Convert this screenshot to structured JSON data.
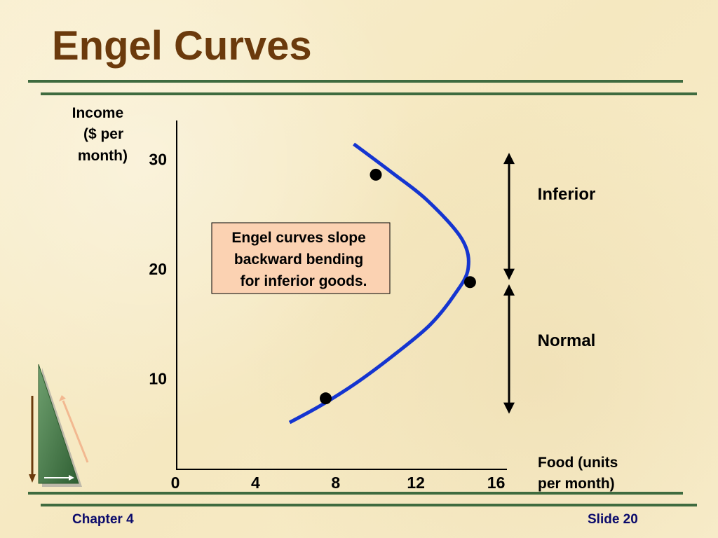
{
  "slide": {
    "title": "Engel Curves",
    "footer_left": "Chapter 4",
    "footer_right": "Slide 20",
    "colors": {
      "title": "#6b3a0c",
      "rule": "#3f6b3f",
      "curve": "#1535d0",
      "callout_fill": "#fbd2b2",
      "footer_text": "#0a0a6b"
    },
    "logo_icon": "green-triangle-logo-icon"
  },
  "chart_data": {
    "type": "line",
    "xlabel_lines": [
      "Food (units",
      "per month)"
    ],
    "ylabel_lines": [
      "Income",
      "($ per",
      "month)"
    ],
    "xlim": [
      0,
      16
    ],
    "ylim": [
      0,
      34
    ],
    "x_ticks": [
      {
        "value": 0,
        "label": "0"
      },
      {
        "value": 4,
        "label": "4"
      },
      {
        "value": 8,
        "label": "8"
      },
      {
        "value": 12,
        "label": "12"
      },
      {
        "value": 16,
        "label": "16"
      }
    ],
    "y_ticks": [
      {
        "value": 10,
        "label": "10"
      },
      {
        "value": 20,
        "label": "20"
      },
      {
        "value": 30,
        "label": "30"
      }
    ],
    "series": [
      {
        "curve": [
          {
            "x": 5.7,
            "y": 6.0
          },
          {
            "x": 7.3,
            "y": 7.6
          },
          {
            "x": 9.1,
            "y": 9.7
          },
          {
            "x": 11.0,
            "y": 12.3
          },
          {
            "x": 12.7,
            "y": 14.9
          },
          {
            "x": 13.9,
            "y": 17.6
          },
          {
            "x": 14.6,
            "y": 20.0
          },
          {
            "x": 14.3,
            "y": 22.7
          },
          {
            "x": 12.6,
            "y": 26.2
          },
          {
            "x": 10.8,
            "y": 28.8
          },
          {
            "x": 8.9,
            "y": 31.4
          }
        ],
        "points": [
          {
            "x": 7.5,
            "y": 8.2
          },
          {
            "x": 14.7,
            "y": 18.8
          },
          {
            "x": 10.0,
            "y": 28.6
          }
        ]
      }
    ],
    "annotations": [
      {
        "text": "Inferior",
        "y_range": [
          19.0,
          30.6
        ]
      },
      {
        "text": "Normal",
        "y_range": [
          6.8,
          18.6
        ]
      }
    ],
    "callout": {
      "lines": [
        "Engel curves slope",
        "backward bending",
        "for inferior goods."
      ]
    }
  }
}
